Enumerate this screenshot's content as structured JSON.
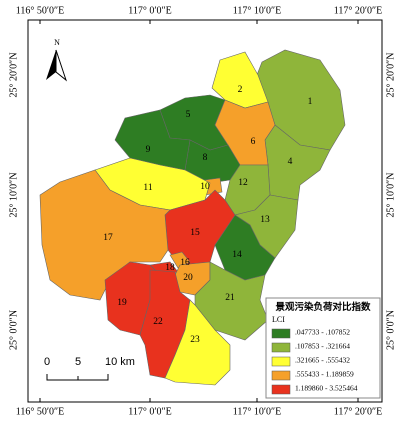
{
  "map": {
    "north": "N",
    "top_labels": [
      "116° 50′0″E",
      "117° 0′0″E",
      "117° 10′0″E",
      "117° 20′0″E"
    ],
    "bottom_labels": [
      "116° 50′0″E",
      "117° 0′0″E",
      "117° 10′0″E",
      "117° 20′0″E"
    ],
    "left_labels": [
      "25° 20′0″N",
      "25° 10′0″N",
      "25° 0′0″N"
    ],
    "right_labels": [
      "25° 20′0″N",
      "25° 10′0″N",
      "25° 0′0″N"
    ],
    "scale": [
      "0",
      "5",
      "10 km"
    ],
    "legend": {
      "title": "景观污染负荷对比指数",
      "subtitle": "LCI",
      "items": [
        {
          "label": ".047733 - .107852",
          "color": "#2e7d23"
        },
        {
          "label": ".107853 - .321664",
          "color": "#8fb53a"
        },
        {
          "label": ".321665 - .555432",
          "color": "#ffff33"
        },
        {
          "label": ".555433 - 1.189859",
          "color": "#f5a02a"
        },
        {
          "label": "1.189860 - 3.525464",
          "color": "#e8321e"
        }
      ]
    },
    "regions": [
      {
        "label": "1",
        "color": "#8fb53a"
      },
      {
        "label": "2",
        "color": "#ffff33"
      },
      {
        "label": "4",
        "color": "#8fb53a"
      },
      {
        "label": "5",
        "color": "#2e7d23"
      },
      {
        "label": "6",
        "color": "#f5a02a"
      },
      {
        "label": "8",
        "color": "#2e7d23"
      },
      {
        "label": "9",
        "color": "#2e7d23"
      },
      {
        "label": "10",
        "color": "#f5a02a"
      },
      {
        "label": "11",
        "color": "#ffff33"
      },
      {
        "label": "12",
        "color": "#8fb53a"
      },
      {
        "label": "13",
        "color": "#8fb53a"
      },
      {
        "label": "14",
        "color": "#2e7d23"
      },
      {
        "label": "15",
        "color": "#e8321e"
      },
      {
        "label": "16",
        "color": "#f5a02a"
      },
      {
        "label": "17",
        "color": "#f5a02a"
      },
      {
        "label": "18",
        "color": "#e8321e"
      },
      {
        "label": "19",
        "color": "#e8321e"
      },
      {
        "label": "20",
        "color": "#f5a02a"
      },
      {
        "label": "21",
        "color": "#8fb53a"
      },
      {
        "label": "22",
        "color": "#e8321e"
      },
      {
        "label": "23",
        "color": "#ffff33"
      }
    ]
  }
}
